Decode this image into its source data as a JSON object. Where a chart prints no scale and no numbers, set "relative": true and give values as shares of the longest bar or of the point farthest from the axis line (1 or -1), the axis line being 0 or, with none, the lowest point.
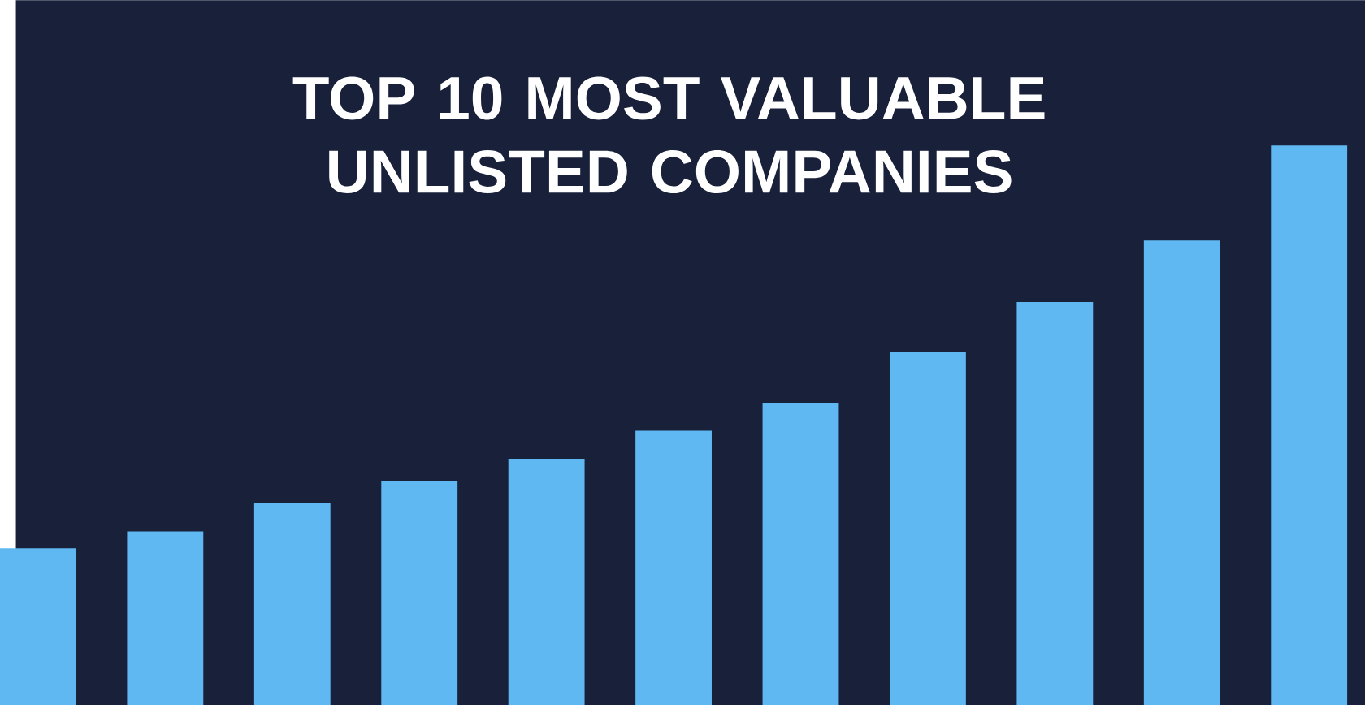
{
  "chart_data": {
    "type": "bar",
    "title": "TOP 10 MOST VALUABLE UNLISTED COMPANIES",
    "relative": true,
    "categories": [
      null,
      null,
      null,
      null,
      null,
      null,
      null,
      null,
      null,
      null,
      null
    ],
    "values": [
      0.28,
      0.31,
      0.36,
      0.4,
      0.44,
      0.49,
      0.54,
      0.63,
      0.72,
      0.83,
      1
    ],
    "color": "#5fb8f2"
  }
}
